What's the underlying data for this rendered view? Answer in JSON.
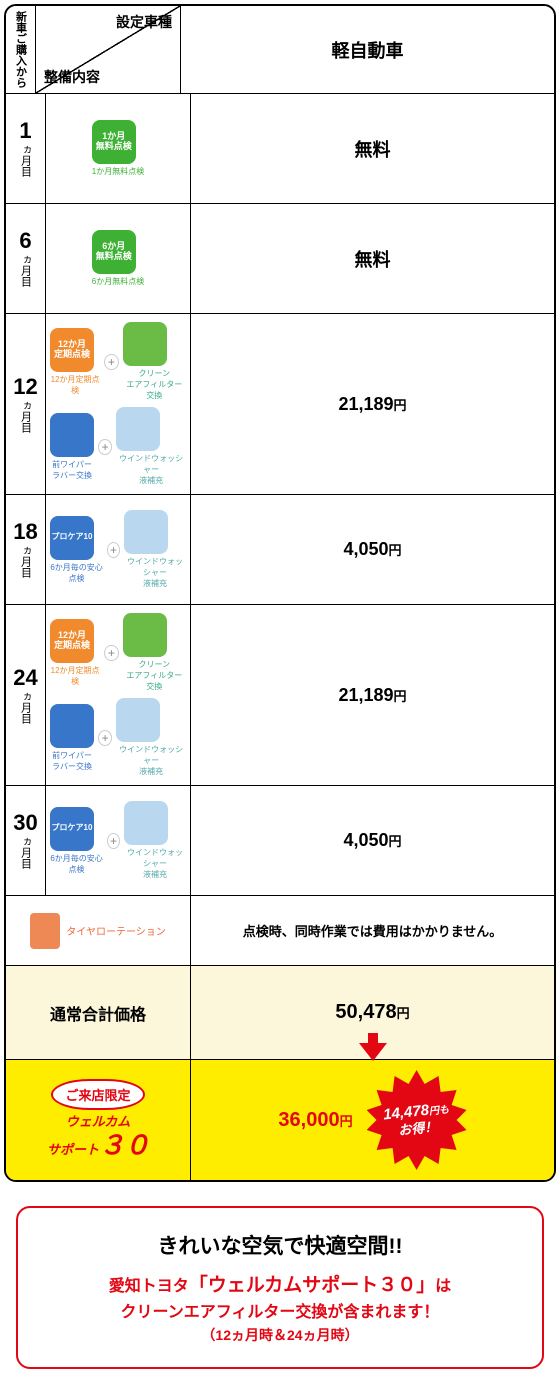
{
  "header": {
    "purchase_label": "新車ご購入から",
    "diag_top": "設定車種",
    "diag_bottom": "整備内容",
    "vehicle_type": "軽自動車"
  },
  "rows": [
    {
      "month": "1",
      "month_label": "ヵ月目",
      "services": "single_green_1",
      "icon_text": "1か月\n無料点検",
      "icon_color": "#3eb134",
      "caption": "1か月無料点検",
      "caption_color": "#3eb134",
      "price": "無料"
    },
    {
      "month": "6",
      "month_label": "ヵ月目",
      "services": "single_green_6",
      "icon_text": "6か月\n無料点検",
      "icon_color": "#3eb134",
      "caption": "6か月無料点検",
      "caption_color": "#3eb134",
      "price": "無料"
    },
    {
      "month": "12",
      "month_label": "ヵ月目",
      "services": "quad_12",
      "price": "21,189",
      "yen": "円"
    },
    {
      "month": "18",
      "month_label": "ヵ月目",
      "services": "pair_18",
      "price": "4,050",
      "yen": "円"
    },
    {
      "month": "24",
      "month_label": "ヵ月目",
      "services": "quad_24",
      "price": "21,189",
      "yen": "円"
    },
    {
      "month": "30",
      "month_label": "ヵ月目",
      "services": "pair_30",
      "price": "4,050",
      "yen": "円"
    }
  ],
  "quad": {
    "a_text": "12か月\n定期点検",
    "a_color": "#f08a2c",
    "a_caption": "12か月定期点検",
    "a_cap_color": "#f08a2c",
    "b_text": "",
    "b_color": "#6bbb47",
    "b_caption": "クリーン\nエアフィルター交換",
    "b_cap_color": "#3a8",
    "c_text": "",
    "c_color": "#3876c9",
    "c_caption": "前ワイパー\nラバー交換",
    "c_cap_color": "#3876c9",
    "d_text": "",
    "d_color": "#b9d8f0",
    "d_caption": "ウインドウォッシャー\n液補充",
    "d_cap_color": "#5aa"
  },
  "pair": {
    "a_text": "プロケア10",
    "a_color": "#3876c9",
    "a_caption": "6か月毎の安心点検",
    "a_cap_color": "#3876c9",
    "b_text": "",
    "b_color": "#b9d8f0",
    "b_caption": "ウインドウォッシャー\n液補充",
    "b_cap_color": "#5aa"
  },
  "rotation": {
    "label": "タイヤローテーション",
    "message": "点検時、同時作業では費用はかかりません。"
  },
  "total": {
    "label": "通常合計価格",
    "price": "50,478",
    "yen": "円"
  },
  "promo": {
    "store_badge": "ご来店限定",
    "welcome_line1": "ウェルカム",
    "welcome_line2": "サポート",
    "welcome_30": "３０",
    "price": "36,000",
    "yen": "円",
    "burst_amount": "14,478",
    "burst_yen": "円も",
    "burst_line2": "お得！"
  },
  "callout": {
    "heading": "きれいな空気で快適空間!!",
    "l1_a": "愛知トヨタ",
    "l1_b": "「ウェルカムサポート３０」",
    "l1_c": "は",
    "l2": "クリーンエアフィルター交換が含まれます！",
    "note": "（12ヵ月時＆24ヵ月時）"
  },
  "colors": {
    "red": "#e30613",
    "yellow": "#ffed00",
    "cream": "#fcf6da"
  }
}
